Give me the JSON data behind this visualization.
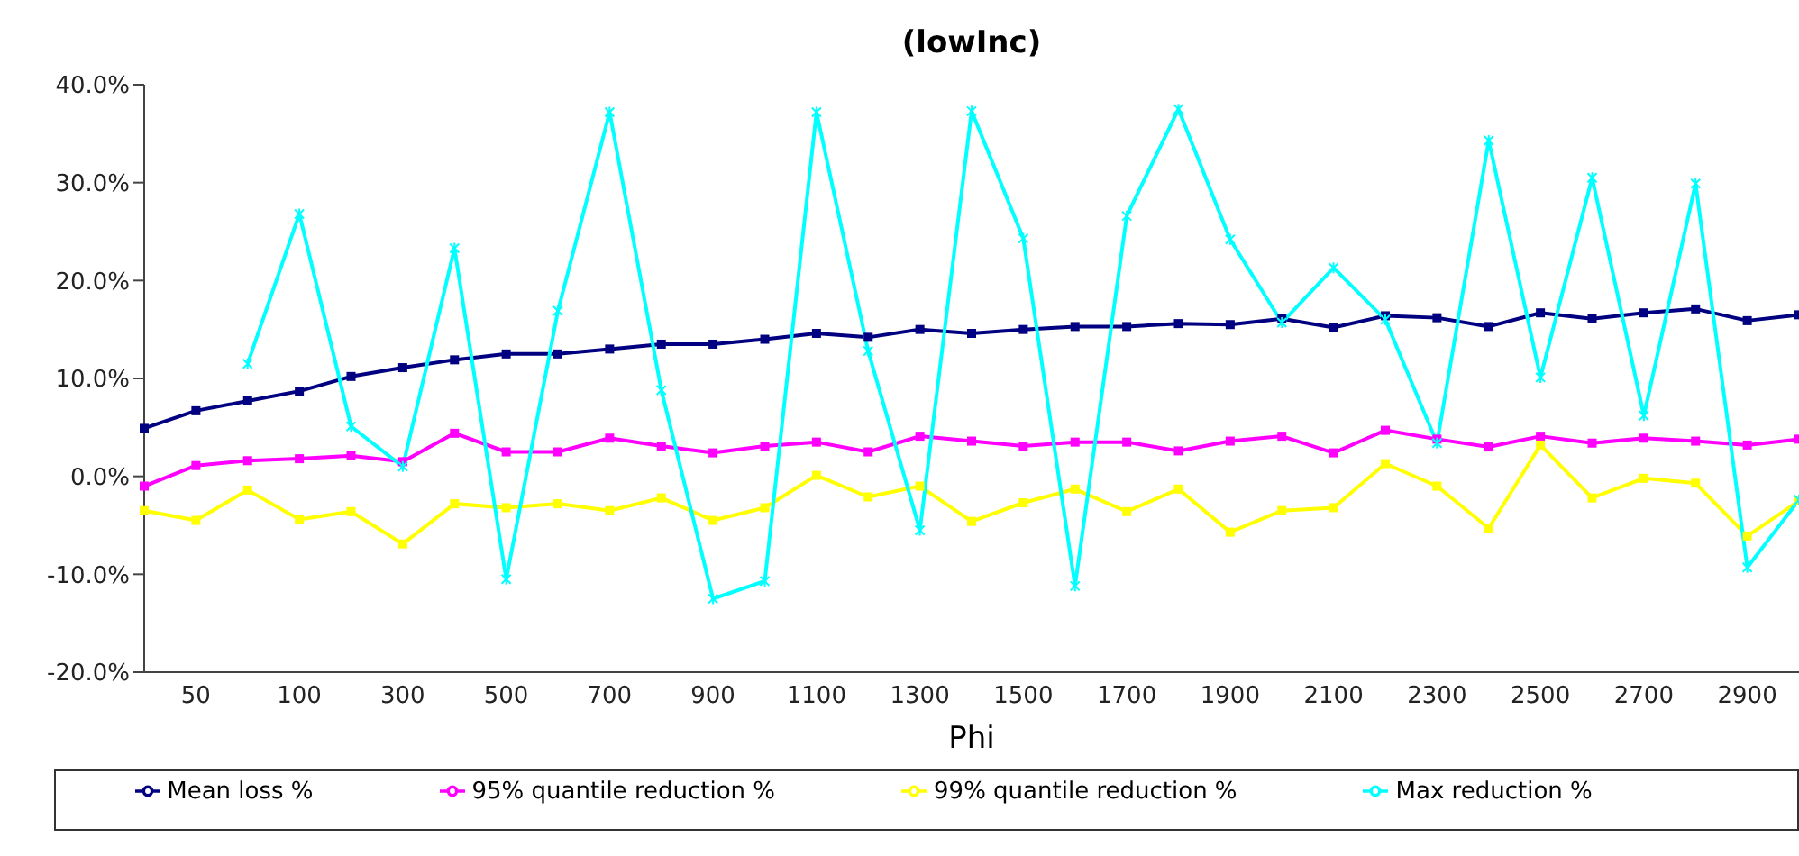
{
  "chart_data": {
    "type": "line",
    "title": "(lowInc)",
    "xlabel": "Phi",
    "categories": [
      null,
      "50",
      null,
      "100",
      null,
      "300",
      null,
      "500",
      null,
      "700",
      null,
      "900",
      null,
      "1100",
      null,
      "1300",
      null,
      "1500",
      null,
      "1700",
      null,
      "1900",
      null,
      "2100",
      null,
      "2300",
      null,
      "2500",
      null,
      "2700",
      null,
      "2900",
      null
    ],
    "series": [
      {
        "name": "Mean loss %",
        "color": "#000080",
        "marker": "square",
        "values": [
          4.9,
          6.7,
          7.7,
          8.7,
          10.2,
          11.1,
          11.9,
          12.5,
          12.5,
          13.0,
          13.5,
          13.5,
          14.0,
          14.6,
          14.2,
          15.0,
          14.6,
          15.0,
          15.3,
          15.3,
          15.6,
          15.5,
          16.1,
          15.2,
          16.4,
          16.2,
          15.3,
          16.7,
          16.1,
          16.7,
          17.1,
          15.9,
          16.5
        ]
      },
      {
        "name": "95% quantile reduction %",
        "color": "#ff00ff",
        "marker": "square",
        "values": [
          -1.0,
          1.1,
          1.6,
          1.8,
          2.1,
          1.5,
          4.4,
          2.5,
          2.5,
          3.9,
          3.1,
          2.4,
          3.1,
          3.5,
          2.5,
          4.1,
          3.6,
          3.1,
          3.5,
          3.5,
          2.6,
          3.6,
          4.1,
          2.4,
          4.7,
          3.8,
          3.0,
          4.1,
          3.4,
          3.9,
          3.6,
          3.2,
          3.8
        ]
      },
      {
        "name": "99% quantile reduction %",
        "color": "#ffff00",
        "marker": "square",
        "values": [
          -3.5,
          -4.5,
          -1.4,
          -4.4,
          -3.6,
          -6.9,
          -2.8,
          -3.2,
          -2.8,
          -3.5,
          -2.2,
          -4.5,
          -3.2,
          0.1,
          -2.1,
          -1.0,
          -4.6,
          -2.7,
          -1.3,
          -3.6,
          -1.3,
          -5.7,
          -3.5,
          -3.2,
          1.3,
          -1.0,
          -5.3,
          3.2,
          -2.2,
          -0.2,
          -0.7,
          -6.1,
          -2.5
        ]
      },
      {
        "name": "Max reduction %",
        "color": "#00ffff",
        "marker": "cross",
        "values": [
          null,
          null,
          11.5,
          26.8,
          5.1,
          1.0,
          23.3,
          -10.5,
          16.9,
          37.2,
          8.8,
          -12.5,
          -10.7,
          37.2,
          12.8,
          -5.5,
          37.3,
          24.3,
          -11.2,
          26.6,
          37.5,
          24.2,
          15.7,
          21.3,
          16.0,
          3.4,
          34.3,
          10.1,
          30.5,
          6.2,
          29.9,
          -9.3,
          -2.4
        ]
      }
    ],
    "ylim": [
      -20,
      40
    ],
    "yticks": [
      {
        "value": -20,
        "label": "-20.0%"
      },
      {
        "value": -10,
        "label": "-10.0%"
      },
      {
        "value": 0,
        "label": "0.0%"
      },
      {
        "value": 10,
        "label": "10.0%"
      },
      {
        "value": 20,
        "label": "20.0%"
      },
      {
        "value": 30,
        "label": "30.0%"
      },
      {
        "value": 40,
        "label": "40.0%"
      }
    ],
    "legend": "bottom",
    "line_style": "solid"
  }
}
